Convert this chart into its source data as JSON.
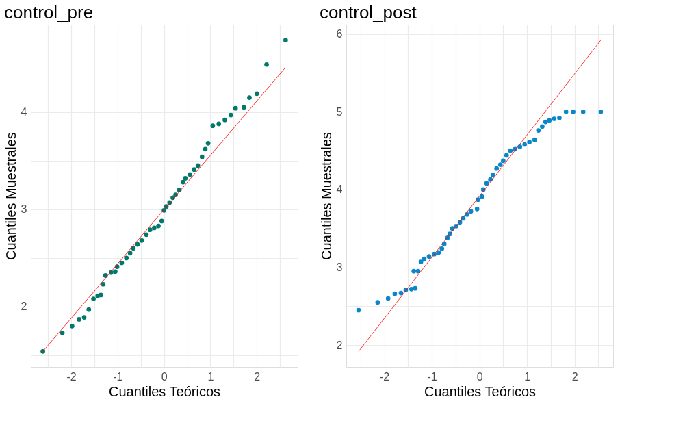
{
  "chart_data": [
    {
      "type": "scatter",
      "title": "control_pre",
      "xlabel": "Cuantiles Teóricos",
      "ylabel": "Cuantiles Muestrales",
      "grid": true,
      "xlim": [
        -2.87,
        2.88
      ],
      "ylim": [
        1.38,
        4.9
      ],
      "xticks": [
        {
          "value": -2.5,
          "label": null
        },
        -2,
        {
          "value": -1.5,
          "label": null
        },
        -1,
        {
          "value": -0.5,
          "label": null
        },
        0,
        {
          "value": 0.5,
          "label": null
        },
        1,
        {
          "value": 1.5,
          "label": null
        },
        2,
        {
          "value": 2.5,
          "label": null
        }
      ],
      "yticks": [
        {
          "value": 1.5,
          "label": null
        },
        2,
        {
          "value": 2.5,
          "label": null
        },
        3,
        {
          "value": 3.5,
          "label": null
        },
        4,
        {
          "value": 4.5,
          "label": null
        }
      ],
      "series": [
        {
          "marker": "circle",
          "color": "#00796b",
          "x": [
            -2.61,
            -2.19,
            -1.98,
            -1.83,
            -1.72,
            -1.62,
            -1.52,
            -1.43,
            -1.36,
            -1.31,
            -1.26,
            -1.14,
            -1.05,
            -1.01,
            -0.91,
            -0.81,
            -0.73,
            -0.66,
            -0.57,
            -0.48,
            -0.38,
            -0.3,
            -0.21,
            -0.12,
            -0.05,
            0,
            0.05,
            0.12,
            0.19,
            0.25,
            0.33,
            0.41,
            0.46,
            0.56,
            0.65,
            0.73,
            0.82,
            0.89,
            0.95,
            1.05,
            1.18,
            1.31,
            1.44,
            1.54,
            1.72,
            1.84,
            2.0,
            2.21,
            2.62
          ],
          "values": [
            1.54,
            1.73,
            1.8,
            1.87,
            1.89,
            1.97,
            2.08,
            2.11,
            2.12,
            2.23,
            2.32,
            2.35,
            2.36,
            2.41,
            2.45,
            2.5,
            2.55,
            2.6,
            2.64,
            2.68,
            2.74,
            2.79,
            2.81,
            2.83,
            2.88,
            2.99,
            3.03,
            3.07,
            3.12,
            3.15,
            3.2,
            3.28,
            3.32,
            3.36,
            3.41,
            3.45,
            3.54,
            3.62,
            3.68,
            3.86,
            3.88,
            3.92,
            3.97,
            4.04,
            4.05,
            4.15,
            4.19,
            4.49,
            4.74
          ]
        },
        {
          "type": "line",
          "marker": "none",
          "color": "#ff0000",
          "x": [
            -2.61,
            2.6
          ],
          "values": [
            1.54,
            4.45
          ]
        }
      ]
    },
    {
      "type": "scatter",
      "title": "control_post",
      "xlabel": "Cuantiles Teóricos",
      "ylabel": "Cuantiles Muestrales",
      "grid": true,
      "xlim": [
        -2.8,
        2.81
      ],
      "ylim": [
        1.72,
        6.12
      ],
      "xticks": [
        {
          "value": -2.5,
          "label": null
        },
        -2,
        {
          "value": -1.5,
          "label": null
        },
        -1,
        {
          "value": -0.5,
          "label": null
        },
        0,
        {
          "value": 0.5,
          "label": null
        },
        1,
        {
          "value": 1.5,
          "label": null
        },
        2,
        {
          "value": 2.5,
          "label": null
        }
      ],
      "yticks": [
        2,
        {
          "value": 2.5,
          "label": null
        },
        3,
        {
          "value": 3.5,
          "label": null
        },
        4,
        {
          "value": 4.5,
          "label": null
        },
        5,
        {
          "value": 5.5,
          "label": null
        },
        6
      ],
      "series": [
        {
          "marker": "circle",
          "color": "#0a86c9",
          "x": [
            -2.54,
            -2.14,
            -1.92,
            -1.78,
            -1.65,
            -1.55,
            -1.43,
            -1.35,
            -1.38,
            -1.29,
            -1.23,
            -1.16,
            -1.06,
            -0.95,
            -0.86,
            -0.79,
            -0.74,
            -0.67,
            -0.62,
            -0.57,
            -0.49,
            -0.41,
            -0.34,
            -0.26,
            -0.18,
            -0.05,
            -0.03,
            0.05,
            0.08,
            0.15,
            0.23,
            0.28,
            0.36,
            0.44,
            0.5,
            0.57,
            0.65,
            0.75,
            0.85,
            0.95,
            1.05,
            1.16,
            1.24,
            1.32,
            1.39,
            1.47,
            1.57,
            1.68,
            1.82,
            1.97,
            2.18,
            2.55
          ],
          "values": [
            2.45,
            2.55,
            2.6,
            2.66,
            2.67,
            2.71,
            2.72,
            2.73,
            2.95,
            2.95,
            3.07,
            3.11,
            3.14,
            3.17,
            3.19,
            3.24,
            3.3,
            3.38,
            3.43,
            3.5,
            3.53,
            3.58,
            3.63,
            3.68,
            3.72,
            3.75,
            3.87,
            3.91,
            4.0,
            4.08,
            4.13,
            4.19,
            4.27,
            4.32,
            4.37,
            4.44,
            4.5,
            4.52,
            4.55,
            4.58,
            4.61,
            4.64,
            4.76,
            4.81,
            4.87,
            4.89,
            4.91,
            4.92,
            5.0,
            5.0,
            5.0,
            5.0
          ]
        },
        {
          "type": "line",
          "marker": "none",
          "color": "#ff0000",
          "x": [
            -2.54,
            2.55
          ],
          "values": [
            1.92,
            5.92
          ]
        }
      ]
    }
  ]
}
